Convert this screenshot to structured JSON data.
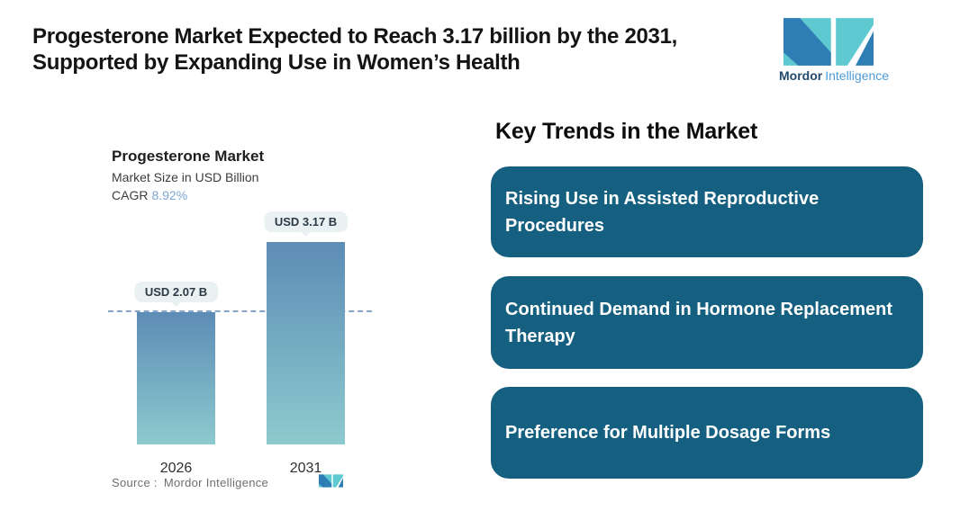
{
  "header": {
    "title_line1": "Progesterone Market Expected to Reach 3.17 billion by the 2031,",
    "title_line2": "Supported by Expanding Use in Women’s Health"
  },
  "brand": {
    "name_bold": "Mordor",
    "name_light": "Intelligence",
    "teal": "#5fc9d1",
    "blue": "#2e7eb5"
  },
  "chart_data": {
    "type": "bar",
    "title": "Progesterone Market",
    "subtitle": "Market Size in USD Billion",
    "cagr_label": "CAGR",
    "cagr_value": "8.92%",
    "categories": [
      "2026",
      "2031"
    ],
    "values": [
      2.07,
      3.17
    ],
    "bar_labels": [
      "USD 2.07 B",
      "USD 3.17 B"
    ],
    "unit": "USD Billion",
    "ylim": [
      0,
      3.5
    ],
    "reference_line": {
      "value": 2.07,
      "style": "dashed"
    },
    "bar_gradient_top": "#5d8cb6",
    "bar_gradient_bottom": "#8dcace",
    "source_label": "Source :",
    "source_value": "Mordor Intelligence",
    "legend": "none",
    "grid": "off"
  },
  "trends": {
    "heading": "Key Trends in the Market",
    "box_color": "#156080",
    "items": [
      {
        "label": "Rising Use in Assisted Reproductive Procedures"
      },
      {
        "label": "Continued Demand in Hormone Replacement Therapy"
      },
      {
        "label": "Preference for Multiple Dosage Forms"
      }
    ]
  }
}
